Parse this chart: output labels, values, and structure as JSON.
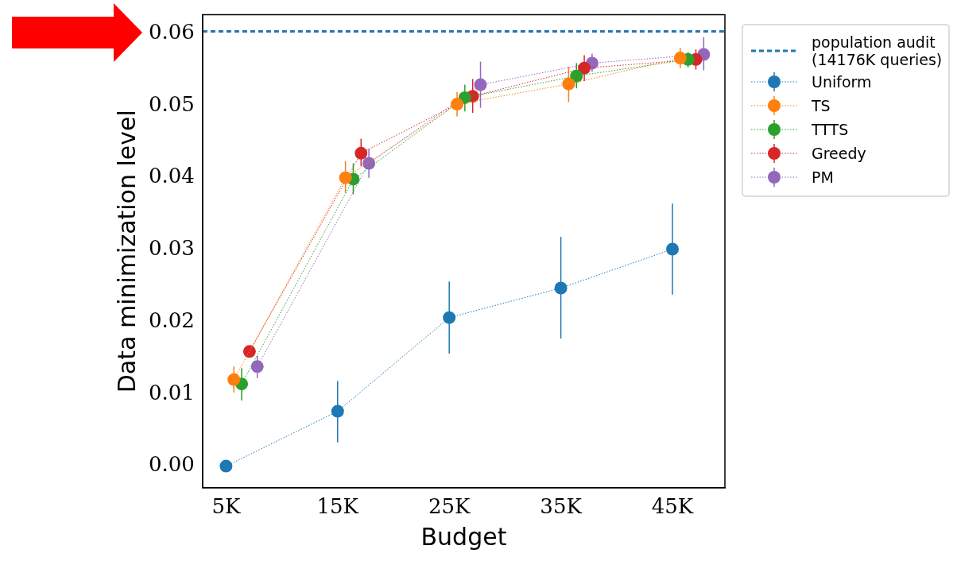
{
  "chart_data": {
    "type": "line",
    "xlabel": "Budget",
    "ylabel": "Data minimization level",
    "xlim": [
      2.9,
      49.7
    ],
    "ylim": [
      -0.003,
      0.0626
    ],
    "xticks": [
      {
        "value": 5,
        "label": "5K"
      },
      {
        "value": 15,
        "label": "15K"
      },
      {
        "value": 25,
        "label": "25K"
      },
      {
        "value": 35,
        "label": "35K"
      },
      {
        "value": 45,
        "label": "45K"
      }
    ],
    "yticks": [
      {
        "value": 0,
        "label": "0.00"
      },
      {
        "value": 0.01,
        "label": "0.01"
      },
      {
        "value": 0.02,
        "label": "0.02"
      },
      {
        "value": 0.03,
        "label": "0.03"
      },
      {
        "value": 0.04,
        "label": "0.04"
      },
      {
        "value": 0.05,
        "label": "0.05"
      },
      {
        "value": 0.06,
        "label": "0.06"
      }
    ],
    "ref_lines": [
      {
        "axis": "y",
        "value": 0.0603,
        "label": "population audit\n(14176K queries)",
        "color": "#1f77b4",
        "line_style": "dashed"
      }
    ],
    "series": [
      {
        "name": "Uniform",
        "color": "#1f77b4",
        "x": [
          5,
          15,
          25,
          35,
          45
        ],
        "values": [
          0,
          0.0076,
          0.0206,
          0.0247,
          0.0301
        ],
        "errors": [
          null,
          [
            0.0033,
            0.0118
          ],
          [
            0.0156,
            0.0256
          ],
          [
            0.0177,
            0.0318
          ],
          [
            0.0238,
            0.0364
          ]
        ]
      },
      {
        "name": "TS",
        "color": "#ff7f0e",
        "x": [
          5.7,
          15.7,
          25.7,
          35.7,
          45.7
        ],
        "values": [
          0.012,
          0.04,
          0.0502,
          0.053,
          0.0566
        ],
        "errors": [
          [
            0.0102,
            0.0138
          ],
          [
            0.0379,
            0.0423
          ],
          [
            0.0485,
            0.0519
          ],
          [
            0.0505,
            0.0554
          ],
          [
            0.0552,
            0.058
          ]
        ]
      },
      {
        "name": "TTTS",
        "color": "#2ca02c",
        "x": [
          6.4,
          16.4,
          26.4,
          36.4,
          46.4
        ],
        "values": [
          0.0114,
          0.0398,
          0.0511,
          0.0541,
          0.0564
        ],
        "errors": [
          [
            0.0091,
            0.0136
          ],
          [
            0.0377,
            0.042
          ],
          [
            0.0492,
            0.0529
          ],
          [
            0.0524,
            0.0559
          ],
          [
            0.0553,
            0.0574
          ]
        ]
      },
      {
        "name": "Greedy",
        "color": "#d62728",
        "x": [
          7.1,
          17.1,
          27.1,
          37.1,
          47.1
        ],
        "values": [
          0.0159,
          0.0434,
          0.0513,
          0.0552,
          0.0564
        ],
        "errors": [
          null,
          [
            0.0416,
            0.0454
          ],
          [
            0.049,
            0.0537
          ],
          [
            0.0534,
            0.057
          ],
          [
            0.055,
            0.0578
          ]
        ]
      },
      {
        "name": "PM",
        "color": "#9467bd",
        "x": [
          7.8,
          17.8,
          27.8,
          37.8,
          47.8
        ],
        "values": [
          0.0138,
          0.042,
          0.0529,
          0.0559,
          0.0571
        ],
        "errors": [
          [
            0.0122,
            0.0153
          ],
          [
            0.04,
            0.044
          ],
          [
            0.0497,
            0.0561
          ],
          [
            0.0547,
            0.0572
          ],
          [
            0.0549,
            0.0595
          ]
        ]
      }
    ],
    "marker": "circle",
    "line_style": "dotted",
    "legend": "top right",
    "grid": false
  }
}
